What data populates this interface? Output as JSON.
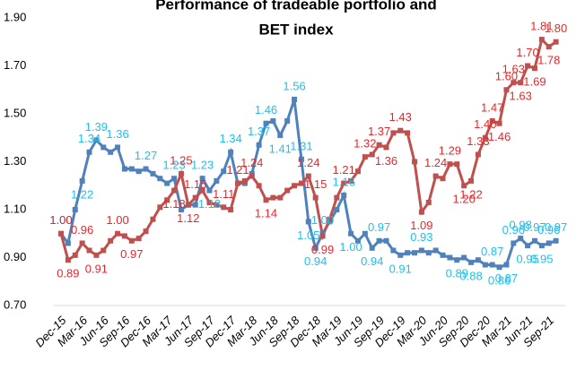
{
  "chart_data": {
    "type": "line",
    "title": [
      "Performance of tradeable portfolio and",
      "BET index"
    ],
    "categories": [
      "Dec-15",
      null,
      null,
      "Mar-16",
      null,
      null,
      "Jun-16",
      null,
      null,
      "Sep-16",
      null,
      null,
      "Dec-16",
      null,
      null,
      "Mar-17",
      null,
      null,
      "Jun-17",
      null,
      null,
      "Sep-17",
      null,
      null,
      "Dec-17",
      null,
      null,
      "Mar-18",
      null,
      null,
      "Jun-18",
      null,
      null,
      "Sep-18",
      null,
      null,
      "Dec-18",
      null,
      null,
      "Mar-19",
      null,
      null,
      "Jun-19",
      null,
      null,
      "Sep-19",
      null,
      null,
      "Dec-19",
      null,
      null,
      "Mar-20",
      null,
      null,
      "Jun-20",
      null,
      null,
      "Sep-20",
      null,
      null,
      "Dec-20",
      null,
      null,
      "Mar-21",
      null,
      null,
      "Jun-21",
      null,
      null,
      "Sep-21",
      null
    ],
    "series": [
      {
        "color": "#4f81bd",
        "label_color": "#1fbfef",
        "values": [
          1.0,
          0.96,
          1.1,
          1.22,
          1.34,
          1.39,
          1.36,
          1.34,
          1.36,
          1.27,
          1.27,
          1.26,
          1.27,
          1.25,
          1.23,
          1.21,
          1.23,
          1.1,
          1.12,
          1.12,
          1.23,
          1.18,
          1.22,
          1.26,
          1.34,
          1.21,
          1.21,
          1.25,
          1.37,
          1.46,
          1.47,
          1.41,
          1.47,
          1.56,
          1.31,
          1.05,
          0.94,
          1.0,
          1.05,
          1.1,
          1.16,
          1.0,
          0.97,
          1.0,
          0.94,
          0.97,
          0.97,
          0.93,
          0.91,
          0.92,
          0.92,
          0.93,
          0.92,
          0.93,
          0.91,
          0.9,
          0.89,
          0.9,
          0.88,
          0.89,
          0.87,
          0.87,
          0.86,
          0.87,
          0.96,
          0.98,
          0.95,
          0.97,
          0.95,
          0.96,
          0.97
        ],
        "value_labels": [
          "1.00",
          null,
          null,
          "1.22",
          "1.34",
          "1.39",
          null,
          null,
          "1.36",
          null,
          null,
          null,
          "1.27",
          null,
          null,
          null,
          "1.23",
          null,
          null,
          null,
          "1.23",
          "1.18",
          null,
          null,
          "1.34",
          null,
          null,
          null,
          "1.37",
          "1.46",
          null,
          "1.41",
          null,
          "1.56",
          "1.31",
          "1.05",
          "0.94",
          "1.00",
          null,
          null,
          "1.16",
          "1.00",
          null,
          null,
          "0.94",
          "0.97",
          null,
          null,
          "0.91",
          null,
          null,
          "0.93",
          null,
          null,
          null,
          null,
          "0.89",
          null,
          "0.88",
          null,
          null,
          "0.87",
          "0.86",
          "0.87",
          "0.96",
          "0.98",
          "0.95",
          "0.97",
          "0.95",
          "0.96",
          "0.97"
        ]
      },
      {
        "color": "#c0504d",
        "label_color": "#e8262a",
        "values": [
          1.0,
          0.89,
          0.91,
          0.96,
          0.93,
          0.91,
          0.93,
          0.97,
          1.0,
          0.99,
          0.97,
          0.98,
          1.01,
          1.06,
          1.11,
          1.14,
          1.18,
          1.25,
          1.12,
          1.15,
          1.18,
          1.13,
          1.12,
          1.11,
          1.1,
          1.21,
          1.22,
          1.24,
          1.2,
          1.14,
          1.15,
          1.15,
          1.18,
          1.2,
          1.21,
          1.24,
          1.15,
          0.99,
          1.06,
          1.15,
          1.21,
          1.22,
          1.26,
          1.32,
          1.33,
          1.37,
          1.36,
          1.42,
          1.43,
          1.42,
          1.3,
          1.09,
          1.13,
          1.24,
          1.23,
          1.29,
          1.29,
          1.2,
          1.22,
          1.33,
          1.4,
          1.47,
          1.46,
          1.6,
          1.63,
          1.63,
          1.7,
          1.69,
          1.81,
          1.78,
          1.8
        ],
        "value_labels": [
          "1.00",
          "0.89",
          null,
          "0.96",
          null,
          "0.91",
          null,
          null,
          "1.00",
          null,
          "0.97",
          null,
          null,
          null,
          null,
          null,
          "1.18",
          "1.25",
          "1.12",
          "1.15",
          null,
          null,
          null,
          "1.11",
          null,
          "1.21",
          null,
          "1.24",
          null,
          "1.14",
          null,
          null,
          null,
          null,
          null,
          "1.24",
          "1.15",
          "0.99",
          null,
          null,
          "1.21",
          null,
          null,
          "1.32",
          null,
          "1.37",
          "1.36",
          null,
          "1.43",
          null,
          null,
          "1.09",
          null,
          "1.24",
          null,
          "1.29",
          null,
          "1.20",
          "1.22",
          "1.33",
          "1.40",
          "1.47",
          "1.46",
          "1.60",
          "1.63",
          "1.63",
          "1.70",
          "1.69",
          "1.81",
          "1.78",
          "1.80"
        ]
      }
    ],
    "ylim": [
      0.7,
      1.9
    ],
    "yticks": [
      {
        "value": 0.7,
        "label": "0.70"
      },
      {
        "value": 0.9,
        "label": "0.90"
      },
      {
        "value": 1.1,
        "label": "1.10"
      },
      {
        "value": 1.3,
        "label": "1.30"
      },
      {
        "value": 1.5,
        "label": "1.50"
      },
      {
        "value": 1.7,
        "label": "1.70"
      },
      {
        "value": 1.9,
        "label": "1.90"
      }
    ],
    "grid": false
  }
}
